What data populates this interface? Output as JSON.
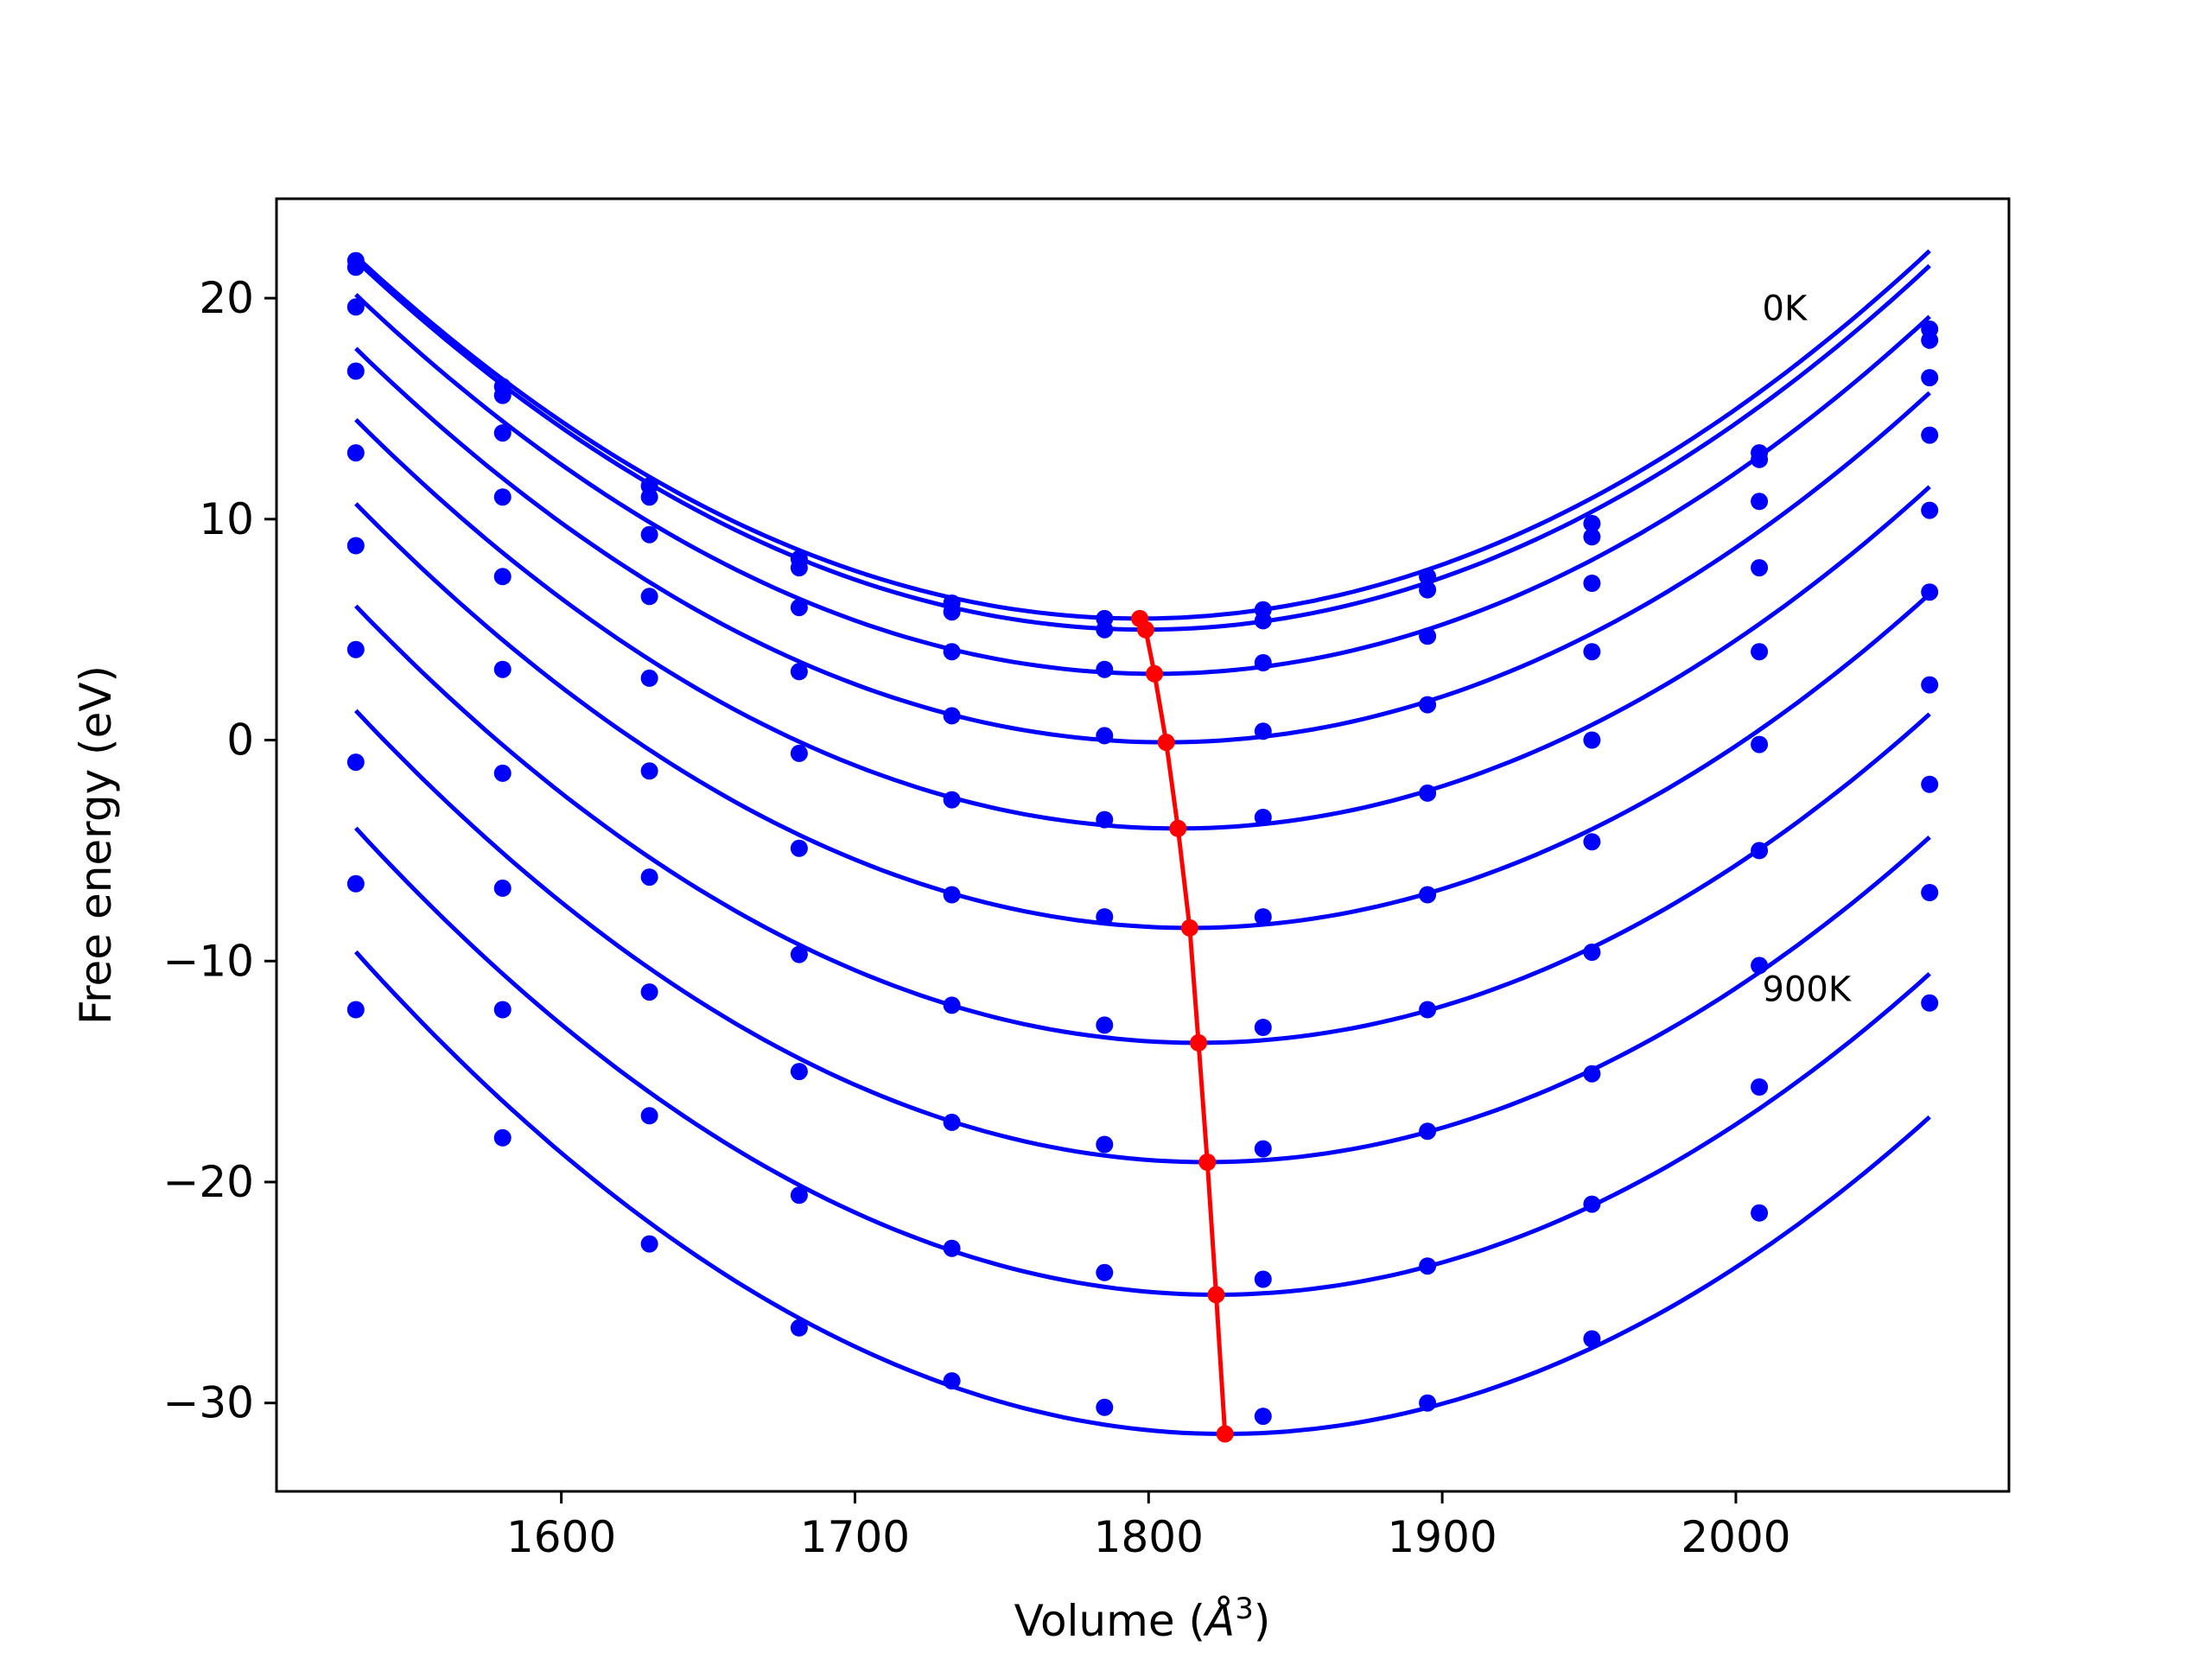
{
  "chart_data": {
    "type": "line",
    "xlabel": "Volume ($\\AA^3$)",
    "xlabel_parts": {
      "pre": "Volume (",
      "sym": "Å",
      "sup": "3",
      "post": ")"
    },
    "ylabel": "Free energy (eV)",
    "xlim": [
      1503,
      2093
    ],
    "ylim": [
      -34.0,
      24.5
    ],
    "xticks": [
      1600,
      1700,
      1800,
      1900,
      2000
    ],
    "xtick_labels": [
      "1600",
      "1700",
      "1800",
      "1900",
      "2000"
    ],
    "yticks": [
      20,
      10,
      0,
      -10,
      -20,
      -30
    ],
    "ytick_labels": [
      "20",
      "10",
      "0",
      "−10",
      "−20",
      "−30"
    ],
    "grid": false,
    "annotations": [
      {
        "text": "0K",
        "x": 2009,
        "y": 19.0
      },
      {
        "text": "900K",
        "x": 2009,
        "y": -11.8
      }
    ],
    "series_color": "#0000ff",
    "minimum_path_color": "#ff0000",
    "volumes": [
      1530,
      1580,
      1630,
      1681,
      1733,
      1785,
      1839,
      1895,
      1951,
      2008,
      2066
    ],
    "series": [
      {
        "E0": 5.5,
        "V0": 1797,
        "B": 0.00023,
        "points": [
          21.7,
          16.0,
          11.5,
          8.2,
          6.2,
          5.5,
          5.9,
          7.4,
          9.8,
          13.0,
          18.6
        ]
      },
      {
        "E0": 5.0,
        "V0": 1799,
        "B": 0.000231,
        "points": [
          21.4,
          15.6,
          11.0,
          7.8,
          5.8,
          5.0,
          5.4,
          6.8,
          9.2,
          12.7,
          18.1
        ]
      },
      {
        "E0": 3.0,
        "V0": 1802,
        "B": 0.000232,
        "points": [
          19.6,
          13.9,
          9.3,
          6.0,
          4.0,
          3.2,
          3.5,
          4.7,
          7.1,
          10.8,
          16.4
        ]
      },
      {
        "E0": -0.1,
        "V0": 1806,
        "B": 0.000234,
        "points": [
          16.7,
          11.0,
          6.5,
          3.1,
          1.1,
          0.2,
          0.4,
          1.6,
          4.0,
          7.8,
          13.8
        ]
      },
      {
        "E0": -4.0,
        "V0": 1810,
        "B": 0.000236,
        "points": [
          13.0,
          7.4,
          2.8,
          -0.6,
          -2.7,
          -3.6,
          -3.5,
          -2.4,
          0.0,
          4.0,
          10.4
        ]
      },
      {
        "E0": -8.5,
        "V0": 1814,
        "B": 0.000238,
        "points": [
          8.8,
          3.2,
          -1.4,
          -4.9,
          -7.0,
          -8.0,
          -8.0,
          -7.0,
          -4.6,
          -0.2,
          6.7
        ]
      },
      {
        "E0": -13.7,
        "V0": 1817,
        "B": 0.00024,
        "points": [
          4.1,
          -1.5,
          -6.2,
          -9.7,
          -12.0,
          -12.9,
          -13.0,
          -12.2,
          -9.6,
          -5.0,
          2.5
        ]
      },
      {
        "E0": -19.1,
        "V0": 1820,
        "B": 0.000243,
        "points": [
          -1.0,
          -6.7,
          -11.4,
          -15.0,
          -17.3,
          -18.3,
          -18.5,
          -17.7,
          -15.1,
          -10.2,
          -2.0
        ]
      },
      {
        "E0": -25.1,
        "V0": 1823,
        "B": 0.000246,
        "points": [
          -6.5,
          -12.2,
          -17.0,
          -20.6,
          -23.0,
          -24.1,
          -24.4,
          -23.8,
          -21.0,
          -15.7,
          -6.9
        ]
      },
      {
        "E0": -31.4,
        "V0": 1826,
        "B": 0.000249,
        "points": [
          -12.2,
          -18.0,
          -22.8,
          -26.6,
          -29.0,
          -30.2,
          -30.6,
          -30.0,
          -27.1,
          -21.4,
          -11.9
        ]
      }
    ],
    "minimum_path": [
      {
        "x": 1797,
        "y": 5.5
      },
      {
        "x": 1799,
        "y": 5.0
      },
      {
        "x": 1802,
        "y": 3.0
      },
      {
        "x": 1806,
        "y": -0.1
      },
      {
        "x": 1810,
        "y": -4.0
      },
      {
        "x": 1814,
        "y": -8.5
      },
      {
        "x": 1817,
        "y": -13.7
      },
      {
        "x": 1820,
        "y": -19.1
      },
      {
        "x": 1823,
        "y": -25.1
      },
      {
        "x": 1826,
        "y": -31.4
      }
    ]
  }
}
